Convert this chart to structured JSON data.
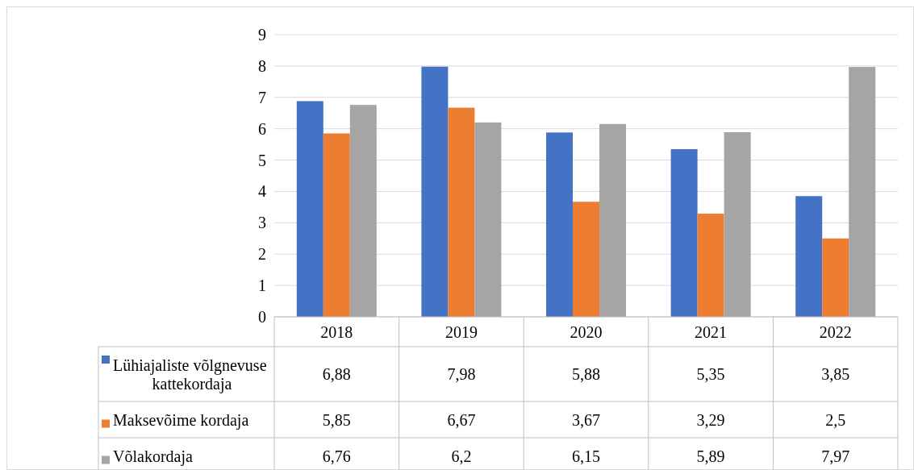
{
  "chart_data": {
    "type": "bar",
    "categories": [
      "2018",
      "2019",
      "2020",
      "2021",
      "2022"
    ],
    "series": [
      {
        "name": "Lühiajaliste võlgnevuse kattekordaja",
        "color": "#4472c4",
        "values": [
          6.88,
          7.98,
          5.88,
          5.35,
          3.85
        ],
        "value_labels": [
          "6,88",
          "7,98",
          "5,88",
          "5,35",
          "3,85"
        ]
      },
      {
        "name": "Maksevõime kordaja",
        "color": "#ed7d31",
        "values": [
          5.85,
          6.67,
          3.67,
          3.29,
          2.5
        ],
        "value_labels": [
          "5,85",
          "6,67",
          "3,67",
          "3,29",
          "2,5"
        ]
      },
      {
        "name": "Võlakordaja",
        "color": "#a5a5a5",
        "values": [
          6.76,
          6.2,
          6.15,
          5.89,
          7.97
        ],
        "value_labels": [
          "6,76",
          "6,2",
          "6,15",
          "5,89",
          "7,97"
        ]
      }
    ],
    "ylim": [
      0,
      9
    ],
    "yticks": [
      0,
      1,
      2,
      3,
      4,
      5,
      6,
      7,
      8,
      9
    ],
    "grid": "y",
    "legend": "bottom"
  }
}
